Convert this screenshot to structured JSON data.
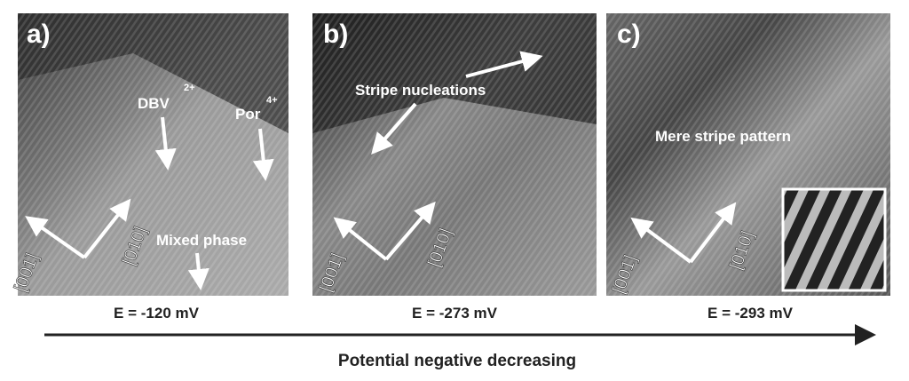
{
  "panels": [
    {
      "label": "a)",
      "annotations": [
        {
          "text": "DBV",
          "sup": "2+"
        },
        {
          "text": "Por",
          "sup": "4+"
        },
        {
          "text": "Mixed phase"
        }
      ],
      "axes": [
        "[001]",
        "[010]"
      ],
      "caption": "E = -120 mV"
    },
    {
      "label": "b)",
      "annotations": [
        {
          "text": "Stripe nucleations"
        }
      ],
      "axes": [
        "[001]",
        "[010]"
      ],
      "caption": "E = -273 mV"
    },
    {
      "label": "c)",
      "annotations": [
        {
          "text": "Mere stripe pattern"
        }
      ],
      "axes": [
        "[001]",
        "[010]"
      ],
      "caption": "E = -293 mV"
    }
  ],
  "footer": "Potential negative decreasing"
}
